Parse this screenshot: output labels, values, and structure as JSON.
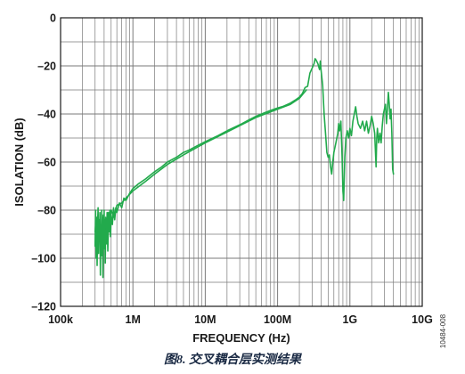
{
  "caption": "图8. 交叉耦合层实测结果",
  "figure_id": "10484-008",
  "colors": {
    "series": "#22aa4c",
    "grid": "#7a7a7a",
    "axis": "#1a1a1a"
  },
  "chart_data": {
    "type": "line",
    "title": "",
    "xlabel": "FREQUENCY (Hz)",
    "ylabel": "ISOLATION (dB)",
    "x_scale": "log",
    "xlim": [
      100000,
      10000000000
    ],
    "ylim": [
      -120,
      0
    ],
    "x_ticks": [
      {
        "value": 100000,
        "label": "100k"
      },
      {
        "value": 1000000,
        "label": "1M"
      },
      {
        "value": 10000000,
        "label": "10M"
      },
      {
        "value": 100000000,
        "label": "100M"
      },
      {
        "value": 1000000000,
        "label": "1G"
      },
      {
        "value": 10000000000,
        "label": "10G"
      }
    ],
    "y_ticks": [
      {
        "value": 0,
        "label": "0"
      },
      {
        "value": -20,
        "label": "–20"
      },
      {
        "value": -40,
        "label": "–40"
      },
      {
        "value": -60,
        "label": "–60"
      },
      {
        "value": -80,
        "label": "–80"
      },
      {
        "value": -100,
        "label": "–100"
      },
      {
        "value": -120,
        "label": "–120"
      }
    ],
    "grid": true,
    "legend": "none",
    "series": [
      {
        "values": [
          [
            300000,
            -95
          ],
          [
            305000,
            -80
          ],
          [
            310000,
            -100
          ],
          [
            315000,
            -83
          ],
          [
            320000,
            -103
          ],
          [
            325000,
            -86
          ],
          [
            330000,
            -79
          ],
          [
            335000,
            -98
          ],
          [
            340000,
            -84
          ],
          [
            345000,
            -92
          ],
          [
            350000,
            -81
          ],
          [
            355000,
            -107
          ],
          [
            360000,
            -86
          ],
          [
            365000,
            -95
          ],
          [
            370000,
            -80
          ],
          [
            375000,
            -99
          ],
          [
            380000,
            -83
          ],
          [
            385000,
            -108
          ],
          [
            390000,
            -88
          ],
          [
            395000,
            -93
          ],
          [
            400000,
            -80
          ],
          [
            405000,
            -96
          ],
          [
            410000,
            -84
          ],
          [
            415000,
            -102
          ],
          [
            420000,
            -86
          ],
          [
            430000,
            -94
          ],
          [
            440000,
            -81
          ],
          [
            450000,
            -97
          ],
          [
            460000,
            -84
          ],
          [
            470000,
            -89
          ],
          [
            480000,
            -80
          ],
          [
            490000,
            -91
          ],
          [
            500000,
            -82
          ],
          [
            520000,
            -86
          ],
          [
            540000,
            -79
          ],
          [
            560000,
            -84
          ],
          [
            580000,
            -79
          ],
          [
            600000,
            -81
          ],
          [
            650000,
            -77
          ],
          [
            700000,
            -79
          ],
          [
            750000,
            -75
          ],
          [
            800000,
            -76
          ],
          [
            900000,
            -73
          ],
          [
            1000000,
            -71
          ],
          [
            1200000,
            -69
          ],
          [
            1500000,
            -67
          ],
          [
            2000000,
            -64
          ],
          [
            2500000,
            -62
          ],
          [
            3000000,
            -60
          ],
          [
            4000000,
            -58
          ],
          [
            5000000,
            -56
          ],
          [
            6000000,
            -55
          ],
          [
            8000000,
            -53
          ],
          [
            10000000,
            -51.5
          ],
          [
            15000000,
            -49
          ],
          [
            20000000,
            -47
          ],
          [
            30000000,
            -44.5
          ],
          [
            40000000,
            -42.5
          ],
          [
            50000000,
            -41
          ],
          [
            60000000,
            -40
          ],
          [
            80000000,
            -38.5
          ],
          [
            100000000,
            -37.5
          ],
          [
            120000000,
            -36.8
          ],
          [
            150000000,
            -35.5
          ],
          [
            180000000,
            -34
          ],
          [
            200000000,
            -33
          ],
          [
            220000000,
            -31.5
          ],
          [
            240000000,
            -29
          ],
          [
            260000000,
            -28.5
          ],
          [
            280000000,
            -23
          ],
          [
            300000000,
            -21
          ],
          [
            320000000,
            -19
          ],
          [
            330000000,
            -17
          ],
          [
            340000000,
            -17.5
          ],
          [
            360000000,
            -19
          ],
          [
            380000000,
            -21.5
          ],
          [
            390000000,
            -18
          ],
          [
            400000000,
            -22
          ],
          [
            420000000,
            -28
          ],
          [
            440000000,
            -40
          ],
          [
            460000000,
            -48
          ],
          [
            480000000,
            -56
          ],
          [
            500000000,
            -58
          ],
          [
            520000000,
            -57
          ],
          [
            540000000,
            -62
          ],
          [
            560000000,
            -65
          ],
          [
            580000000,
            -60
          ],
          [
            600000000,
            -56
          ],
          [
            640000000,
            -52
          ],
          [
            680000000,
            -48
          ],
          [
            700000000,
            -44
          ],
          [
            720000000,
            -47
          ],
          [
            750000000,
            -43
          ],
          [
            780000000,
            -58
          ],
          [
            800000000,
            -72
          ],
          [
            820000000,
            -76
          ],
          [
            850000000,
            -58
          ],
          [
            880000000,
            -50
          ],
          [
            920000000,
            -47
          ],
          [
            960000000,
            -50
          ],
          [
            1000000000,
            -46
          ],
          [
            1050000000,
            -49
          ],
          [
            1100000000,
            -43
          ],
          [
            1150000000,
            -40
          ],
          [
            1200000000,
            -37
          ],
          [
            1250000000,
            -41
          ],
          [
            1300000000,
            -44
          ],
          [
            1400000000,
            -46
          ],
          [
            1500000000,
            -43
          ],
          [
            1600000000,
            -47
          ],
          [
            1700000000,
            -43
          ],
          [
            1800000000,
            -48
          ],
          [
            1900000000,
            -45
          ],
          [
            2000000000,
            -41
          ],
          [
            2100000000,
            -44
          ],
          [
            2200000000,
            -48
          ],
          [
            2300000000,
            -62
          ],
          [
            2350000000,
            -50
          ],
          [
            2400000000,
            -46
          ],
          [
            2500000000,
            -52
          ],
          [
            2600000000,
            -48
          ],
          [
            2700000000,
            -52
          ],
          [
            2800000000,
            -45
          ],
          [
            2900000000,
            -40
          ],
          [
            3000000000,
            -38
          ],
          [
            3100000000,
            -36
          ],
          [
            3200000000,
            -44
          ],
          [
            3300000000,
            -38
          ],
          [
            3400000000,
            -31
          ],
          [
            3500000000,
            -36
          ],
          [
            3600000000,
            -42
          ],
          [
            3700000000,
            -38
          ],
          [
            3800000000,
            -48
          ],
          [
            3900000000,
            -63
          ],
          [
            4000000000,
            -65
          ]
        ]
      },
      {
        "values": [
          [
            300000,
            -89
          ],
          [
            310000,
            -84
          ],
          [
            320000,
            -96
          ],
          [
            330000,
            -82
          ],
          [
            340000,
            -93
          ],
          [
            350000,
            -85
          ],
          [
            360000,
            -99
          ],
          [
            370000,
            -84
          ],
          [
            380000,
            -95
          ],
          [
            390000,
            -82
          ],
          [
            400000,
            -91
          ],
          [
            420000,
            -83
          ],
          [
            440000,
            -90
          ],
          [
            460000,
            -81
          ],
          [
            480000,
            -87
          ],
          [
            500000,
            -80
          ],
          [
            550000,
            -83
          ],
          [
            600000,
            -78
          ],
          [
            700000,
            -77
          ],
          [
            800000,
            -75
          ],
          [
            1000000,
            -72
          ],
          [
            1500000,
            -68
          ],
          [
            2000000,
            -65
          ],
          [
            3000000,
            -61
          ],
          [
            5000000,
            -57
          ],
          [
            10000000,
            -52
          ],
          [
            20000000,
            -47.5
          ],
          [
            50000000,
            -41.5
          ],
          [
            100000000,
            -38
          ],
          [
            150000000,
            -36
          ],
          [
            200000000,
            -33.5
          ],
          [
            250000000,
            -30
          ]
        ]
      }
    ]
  }
}
